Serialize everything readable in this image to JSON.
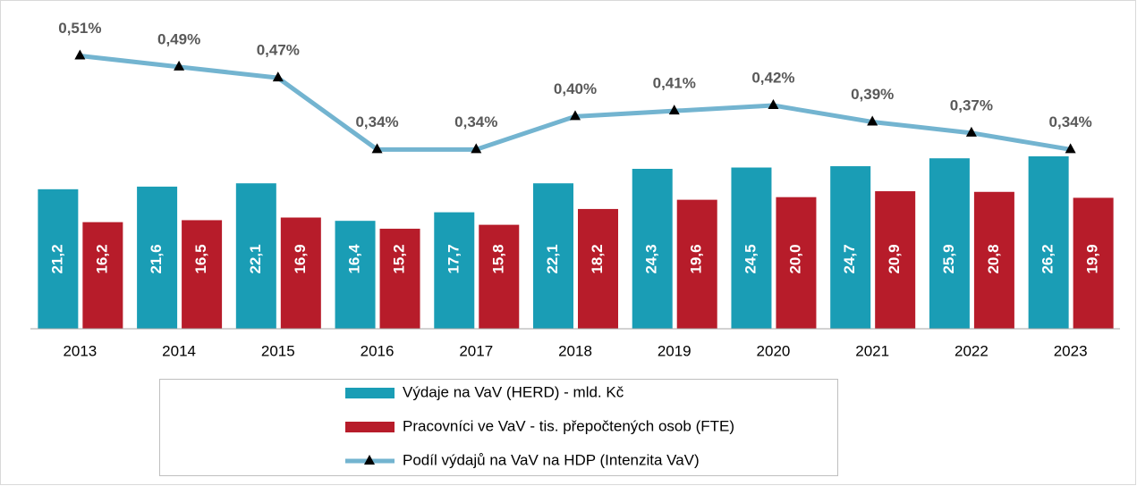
{
  "chart_data": {
    "type": "bar",
    "categories": [
      "2013",
      "2014",
      "2015",
      "2016",
      "2017",
      "2018",
      "2019",
      "2020",
      "2021",
      "2022",
      "2023"
    ],
    "ylim": [
      0,
      30
    ],
    "y2lim": [
      0,
      0.6
    ],
    "series": [
      {
        "name": "Výdaje na VaV (HERD) - mld. Kč",
        "color": "#1a9db5",
        "values": [
          21.2,
          21.6,
          22.1,
          16.4,
          17.7,
          22.1,
          24.3,
          24.5,
          24.7,
          25.9,
          26.2
        ],
        "value_labels": [
          "21,2",
          "21,6",
          "22,1",
          "16,4",
          "17,7",
          "22,1",
          "24,3",
          "24,5",
          "24,7",
          "25,9",
          "26,2"
        ]
      },
      {
        "name": "Pracovníci ve VaV - tis. přepočtených osob (FTE)",
        "color": "#b71c2a",
        "values": [
          16.2,
          16.5,
          16.9,
          15.2,
          15.8,
          18.2,
          19.6,
          20.0,
          20.9,
          20.8,
          19.9
        ],
        "value_labels": [
          "16,2",
          "16,5",
          "16,9",
          "15,2",
          "15,8",
          "18,2",
          "19,6",
          "20,0",
          "20,9",
          "20,8",
          "19,9"
        ]
      },
      {
        "name": "Podíl výdajů na VaV na HDP (Intenzita VaV)",
        "color": "#73b4d0",
        "type": "line",
        "axis": "y2",
        "values": [
          0.51,
          0.49,
          0.47,
          0.34,
          0.34,
          0.4,
          0.41,
          0.42,
          0.39,
          0.37,
          0.34
        ],
        "value_labels": [
          "0,51%",
          "0,49%",
          "0,47%",
          "0,34%",
          "0,34%",
          "0,40%",
          "0,41%",
          "0,42%",
          "0,39%",
          "0,37%",
          "0,34%"
        ]
      }
    ]
  }
}
